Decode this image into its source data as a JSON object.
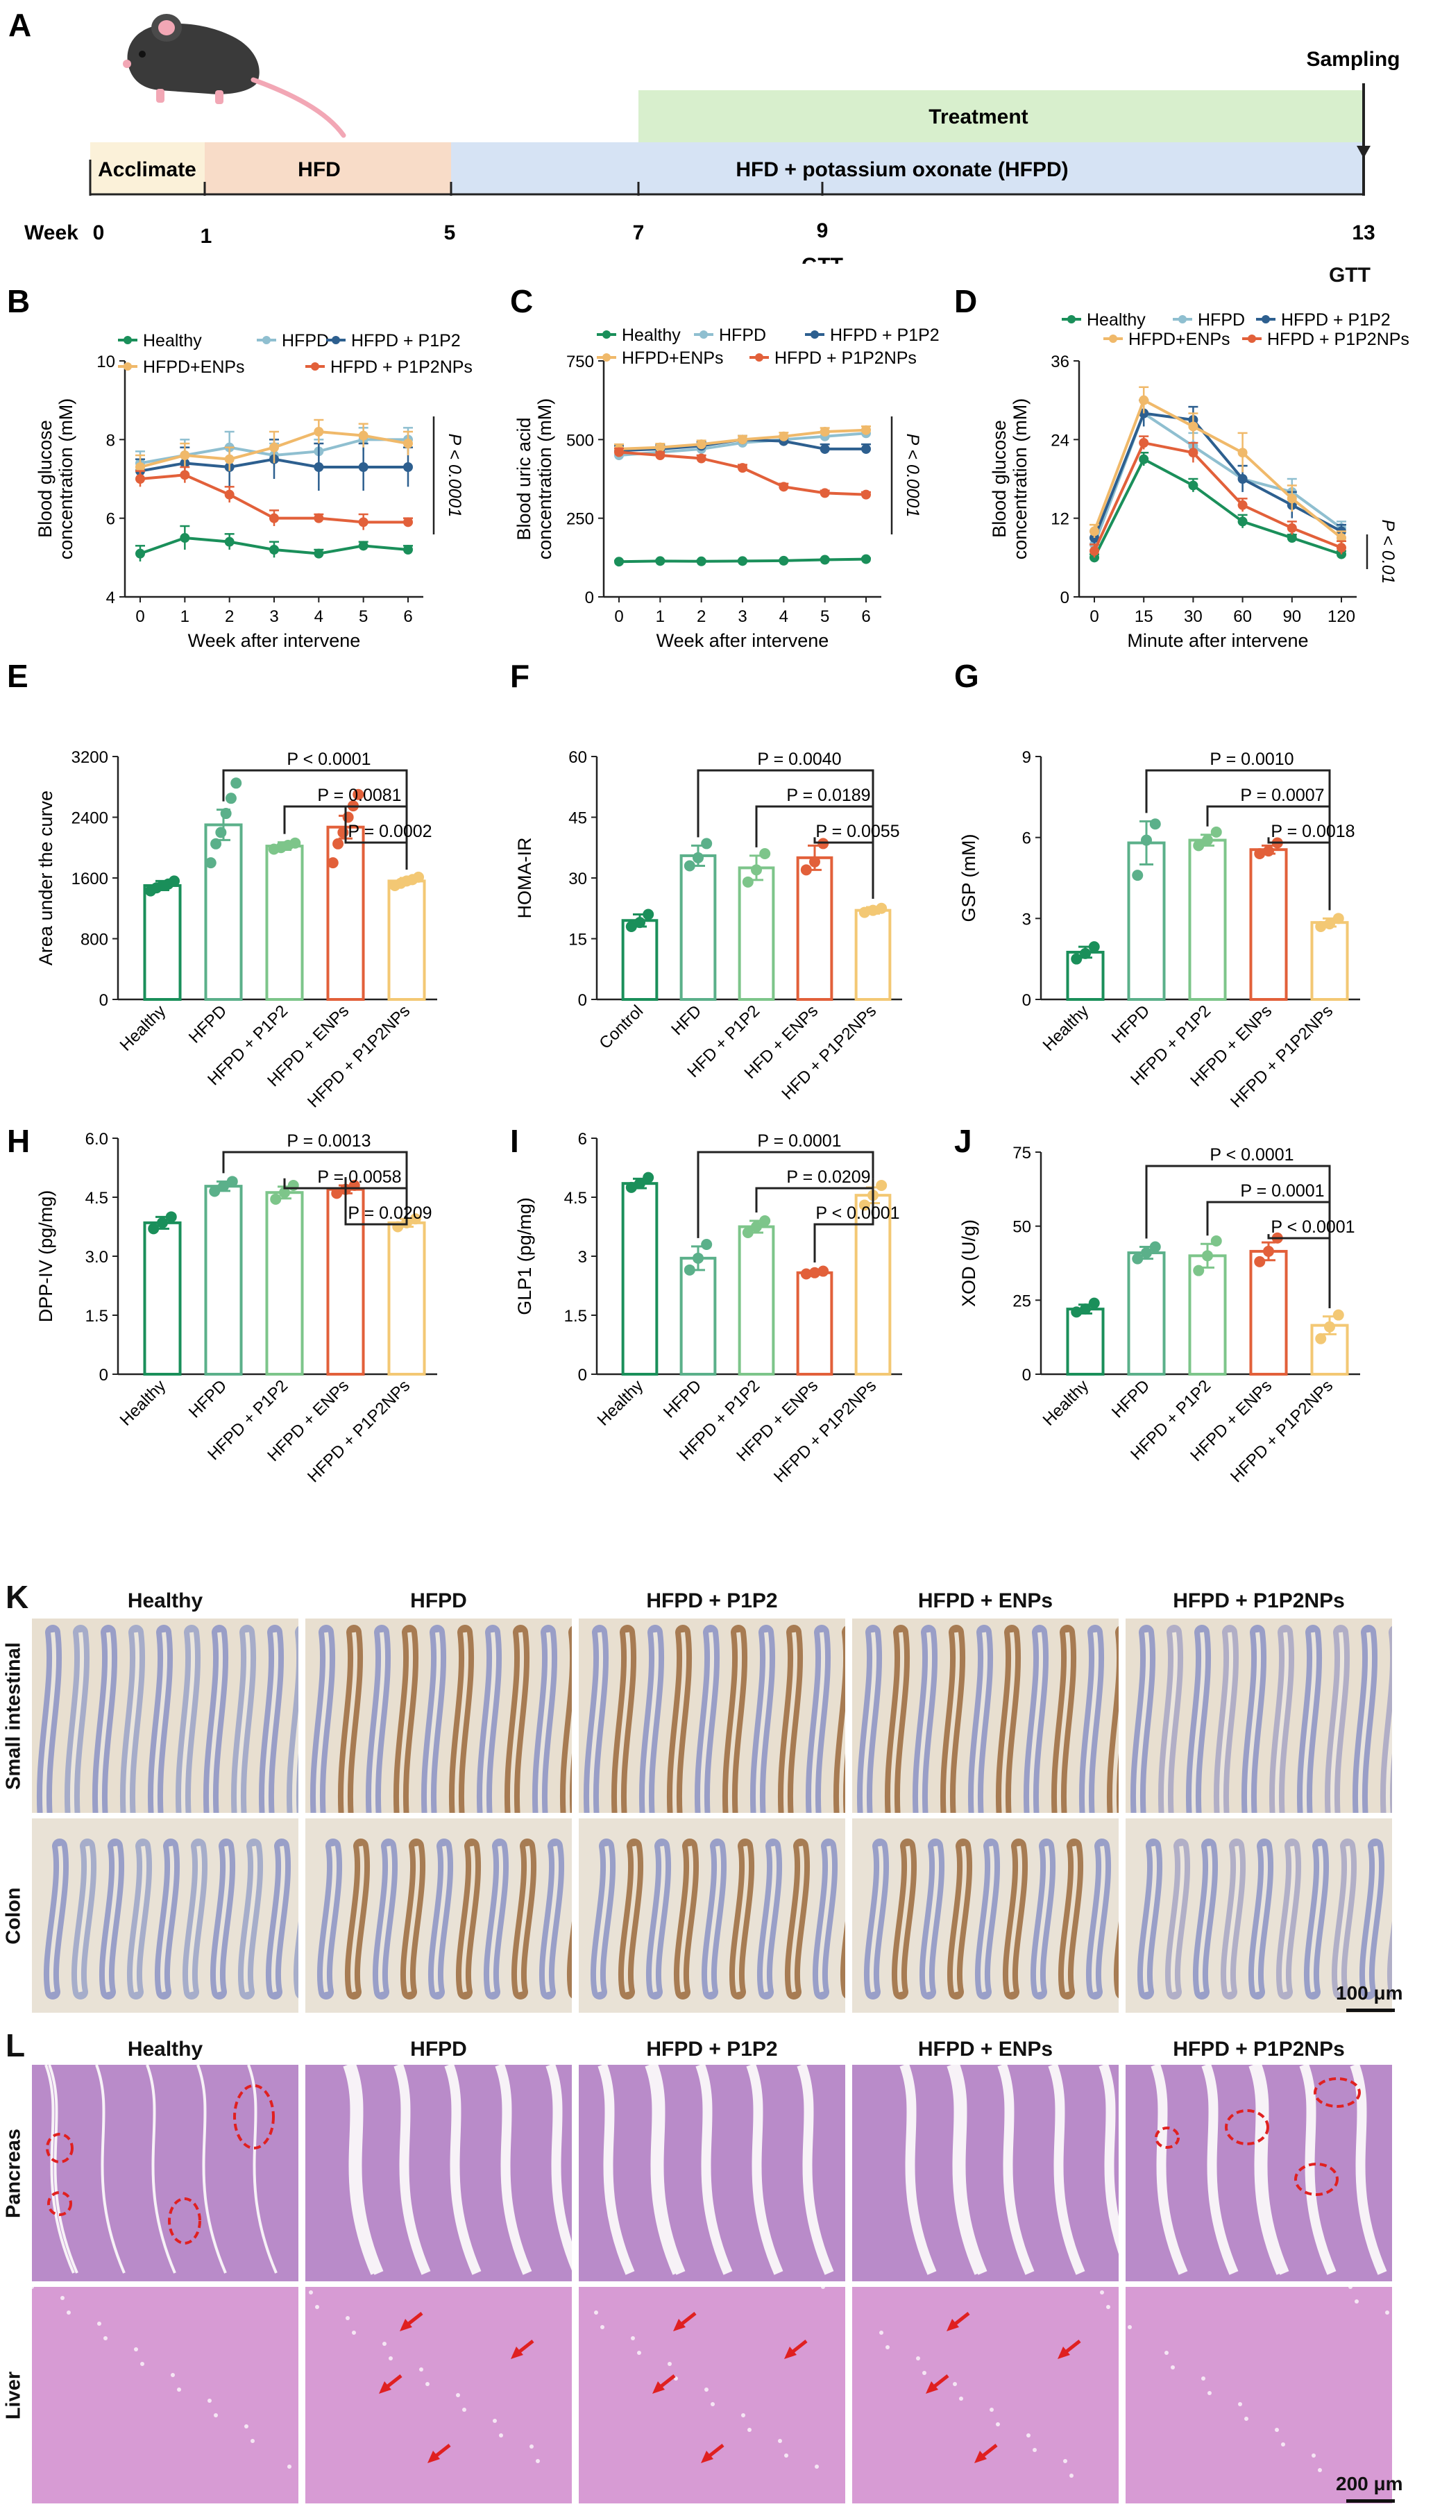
{
  "colors": {
    "healthy": "#1a8f5a",
    "hfpd": "#8fbfd0",
    "p1p2": "#2d5f8f",
    "enps": "#f0b96a",
    "p1p2nps": "#e2603a",
    "p1p2_light": "#7dc58a",
    "hfpd_bar": "#5bb08a",
    "bar_yellow": "#f3c874",
    "pink_arrow": "#e02020",
    "timeline_acclimate": "#fbf1d9",
    "timeline_hfd": "#f8dcc8",
    "timeline_hfpd": "#d6e3f4",
    "timeline_treatment": "#d8efcd"
  },
  "panelA": {
    "letter": "A",
    "acclimate": "Acclimate",
    "hfd": "HFD",
    "hfpd": "HFD + potassium oxonate (HFPD)",
    "treatment": "Treatment",
    "sampling": "Sampling",
    "week_label": "Week",
    "weeks": [
      "0",
      "1",
      "5",
      "7",
      "9",
      "13"
    ],
    "gtt": "GTT",
    "mouse_icon": "mouse-icon"
  },
  "chart_data": [
    {
      "panel": "B",
      "type": "line",
      "xlabel": "Week after intervene",
      "ylabel": "Blood glucose concentration (mM)",
      "x": [
        0,
        1,
        2,
        3,
        4,
        5,
        6
      ],
      "ylim": [
        4,
        10
      ],
      "yticks": [
        "4",
        "6",
        "8",
        "10"
      ],
      "annotation": "P < 0.0001",
      "legend": [
        "Healthy",
        "HFPD",
        "HFPD + P1P2",
        "HFPD+ENPs",
        "HFPD + P1P2NPs"
      ],
      "series": [
        {
          "name": "Healthy",
          "values": [
            5.1,
            5.5,
            5.4,
            5.2,
            5.1,
            5.3,
            5.2
          ],
          "err": [
            0.2,
            0.3,
            0.2,
            0.2,
            0.1,
            0.1,
            0.1
          ]
        },
        {
          "name": "HFPD",
          "values": [
            7.4,
            7.6,
            7.8,
            7.6,
            7.7,
            8.0,
            8.0
          ],
          "err": [
            0.3,
            0.4,
            0.4,
            0.3,
            0.3,
            0.3,
            0.3
          ]
        },
        {
          "name": "HFPD + P1P2",
          "values": [
            7.2,
            7.4,
            7.3,
            7.5,
            7.3,
            7.3,
            7.3
          ],
          "err": [
            0.3,
            0.4,
            0.5,
            0.5,
            0.6,
            0.6,
            0.5
          ]
        },
        {
          "name": "HFPD+ENPs",
          "values": [
            7.3,
            7.6,
            7.5,
            7.8,
            8.2,
            8.1,
            7.9
          ],
          "err": [
            0.3,
            0.3,
            0.3,
            0.4,
            0.3,
            0.3,
            0.3
          ]
        },
        {
          "name": "HFPD + P1P2NPs",
          "values": [
            7.0,
            7.1,
            6.6,
            6.0,
            6.0,
            5.9,
            5.9
          ],
          "err": [
            0.2,
            0.2,
            0.2,
            0.2,
            0.1,
            0.2,
            0.1
          ]
        }
      ]
    },
    {
      "panel": "C",
      "type": "line",
      "xlabel": "Week after intervene",
      "ylabel": "Blood uric acid concentration (mM)",
      "x": [
        0,
        1,
        2,
        3,
        4,
        5,
        6
      ],
      "ylim": [
        0,
        750
      ],
      "yticks": [
        "0",
        "250",
        "500",
        "750"
      ],
      "annotation": "P < 0.0001",
      "legend": [
        "Healthy",
        "HFPD",
        "HFPD + P1P2",
        "HFPD+ENPs",
        "HFPD + P1P2NPs"
      ],
      "series": [
        {
          "name": "Healthy",
          "values": [
            112,
            114,
            113,
            114,
            115,
            118,
            120
          ],
          "err": [
            3,
            3,
            3,
            3,
            3,
            3,
            3
          ]
        },
        {
          "name": "HFPD",
          "values": [
            450,
            460,
            470,
            490,
            500,
            510,
            520
          ],
          "err": [
            15,
            12,
            12,
            12,
            12,
            12,
            12
          ]
        },
        {
          "name": "HFPD + P1P2",
          "values": [
            465,
            470,
            480,
            500,
            495,
            470,
            470
          ],
          "err": [
            15,
            12,
            12,
            12,
            12,
            15,
            15
          ]
        },
        {
          "name": "HFPD+ENPs",
          "values": [
            470,
            475,
            485,
            500,
            510,
            525,
            530
          ],
          "err": [
            15,
            12,
            12,
            12,
            12,
            12,
            12
          ]
        },
        {
          "name": "HFPD + P1P2NPs",
          "values": [
            460,
            450,
            440,
            410,
            350,
            330,
            325
          ],
          "err": [
            12,
            10,
            10,
            10,
            10,
            8,
            8
          ]
        }
      ]
    },
    {
      "panel": "D",
      "type": "line",
      "xlabel": "Minute after intervene",
      "ylabel": "Blood glucose concentration (mM)",
      "x": [
        0,
        15,
        30,
        60,
        90,
        120
      ],
      "xticks": [
        "0",
        "15",
        "30",
        "60",
        "90",
        "120"
      ],
      "ylim": [
        0,
        36
      ],
      "yticks": [
        "0",
        "12",
        "24",
        "36"
      ],
      "annotation": "P < 0.01",
      "legend": [
        "Healthy",
        "HFPD",
        "HFPD + P1P2",
        "HFPD+ENPs",
        "HFPD + P1P2NPs"
      ],
      "series": [
        {
          "name": "Healthy",
          "values": [
            6,
            21,
            17,
            11.5,
            9,
            6.5
          ],
          "err": [
            0.5,
            1,
            1,
            1,
            0.5,
            0.5
          ]
        },
        {
          "name": "HFPD",
          "values": [
            8,
            28,
            23,
            18,
            16,
            10.5
          ],
          "err": [
            1,
            2,
            2,
            2,
            2,
            1
          ]
        },
        {
          "name": "HFPD + P1P2",
          "values": [
            9,
            28,
            27,
            18,
            14,
            10
          ],
          "err": [
            1,
            2,
            2,
            2,
            2,
            1
          ]
        },
        {
          "name": "HFPD+ENPs",
          "values": [
            10,
            30,
            26,
            22,
            15,
            9
          ],
          "err": [
            1,
            2,
            2,
            3,
            2,
            1
          ]
        },
        {
          "name": "HFPD + P1P2NPs",
          "values": [
            7,
            23.5,
            22,
            14,
            10.5,
            7.5
          ],
          "err": [
            1,
            1,
            1.5,
            1,
            1,
            1
          ]
        }
      ]
    },
    {
      "panel": "E",
      "type": "bar",
      "ylabel": "Area under the curve",
      "categories": [
        "Healthy",
        "HFPD",
        "HFPD + P1P2",
        "HFPD + ENPs",
        "HFPD + P1P2NPs"
      ],
      "values": [
        1500,
        2300,
        2020,
        2270,
        1560
      ],
      "err": [
        60,
        200,
        50,
        150,
        40
      ],
      "ylim": [
        0,
        3200
      ],
      "yticks": [
        "0",
        "800",
        "1600",
        "2400",
        "3200"
      ],
      "points": [
        [
          1430,
          1470,
          1500,
          1520,
          1560
        ],
        [
          1800,
          2050,
          2200,
          2450,
          2650,
          2850
        ],
        [
          1980,
          2000,
          2030,
          2060
        ],
        [
          1800,
          2050,
          2200,
          2400,
          2550,
          2700
        ],
        [
          1500,
          1530,
          1560,
          1580,
          1610
        ]
      ],
      "comparisons": [
        {
          "from": 1,
          "to": 4,
          "label": "P < 0.0001"
        },
        {
          "from": 2,
          "to": 4,
          "label": "P = 0.0081"
        },
        {
          "from": 3,
          "to": 4,
          "label": "P = 0.0002"
        }
      ]
    },
    {
      "panel": "F",
      "type": "bar",
      "ylabel": "HOMA-IR",
      "categories": [
        "Control",
        "HFD",
        "HFD + P1P2",
        "HFD + ENPs",
        "HFD + P1P2NPs"
      ],
      "values": [
        19.5,
        35.5,
        32.5,
        35,
        22
      ],
      "err": [
        1.5,
        2.5,
        3,
        3,
        0.8
      ],
      "ylim": [
        0,
        60
      ],
      "yticks": [
        "0",
        "15",
        "30",
        "45",
        "60"
      ],
      "points": [
        [
          18,
          19,
          21
        ],
        [
          33,
          35,
          38.5
        ],
        [
          29,
          32,
          36
        ],
        [
          32,
          34,
          38.5
        ],
        [
          21.5,
          22,
          22.5
        ]
      ],
      "comparisons": [
        {
          "from": 1,
          "to": 4,
          "label": "P = 0.0040"
        },
        {
          "from": 2,
          "to": 4,
          "label": "P = 0.0189"
        },
        {
          "from": 3,
          "to": 4,
          "label": "P = 0.0055"
        }
      ]
    },
    {
      "panel": "G",
      "type": "bar",
      "ylabel": "GSP (mM)",
      "categories": [
        "Healthy",
        "HFPD",
        "HFPD + P1P2",
        "HFPD + ENPs",
        "HFPD + P1P2NPs"
      ],
      "values": [
        1.75,
        5.8,
        5.9,
        5.55,
        2.85
      ],
      "err": [
        0.2,
        0.8,
        0.2,
        0.15,
        0.15
      ],
      "ylim": [
        0,
        9
      ],
      "yticks": [
        "0",
        "3",
        "6",
        "9"
      ],
      "points": [
        [
          1.5,
          1.7,
          1.95
        ],
        [
          4.6,
          5.9,
          6.5
        ],
        [
          5.7,
          5.9,
          6.2
        ],
        [
          5.4,
          5.5,
          5.8
        ],
        [
          2.7,
          2.8,
          3.0
        ]
      ],
      "comparisons": [
        {
          "from": 1,
          "to": 4,
          "label": "P = 0.0010"
        },
        {
          "from": 2,
          "to": 4,
          "label": "P = 0.0007"
        },
        {
          "from": 3,
          "to": 4,
          "label": "P = 0.0018"
        }
      ]
    },
    {
      "panel": "H",
      "type": "bar",
      "ylabel": "DPP-IV (pg/mg)",
      "categories": [
        "Healthy",
        "HFPD",
        "HFPD + P1P2",
        "HFPD + ENPs",
        "HFPD + P1P2NPs"
      ],
      "values": [
        3.85,
        4.78,
        4.62,
        4.7,
        3.85
      ],
      "err": [
        0.15,
        0.12,
        0.15,
        0.1,
        0.1
      ],
      "ylim": [
        0,
        6
      ],
      "yticks": [
        "0",
        "1.5",
        "3.0",
        "4.5",
        "6.0"
      ],
      "points": [
        [
          3.7,
          3.85,
          4.0
        ],
        [
          4.65,
          4.78,
          4.9
        ],
        [
          4.45,
          4.62,
          4.8
        ],
        [
          4.6,
          4.7,
          4.8
        ],
        [
          3.75,
          3.85,
          3.95
        ]
      ],
      "comparisons": [
        {
          "from": 1,
          "to": 4,
          "label": "P = 0.0013"
        },
        {
          "from": 2,
          "to": 4,
          "label": "P = 0.0058"
        },
        {
          "from": 3,
          "to": 4,
          "label": "P = 0.0209"
        }
      ]
    },
    {
      "panel": "I",
      "type": "bar",
      "ylabel": "GLP1 (pg/mg)",
      "categories": [
        "Healthy",
        "HFPD",
        "HFPD + P1P2",
        "HFPD + ENPs",
        "HFPD + P1P2NPs"
      ],
      "values": [
        4.85,
        2.95,
        3.75,
        2.58,
        4.55
      ],
      "err": [
        0.12,
        0.3,
        0.15,
        0.05,
        0.2
      ],
      "ylim": [
        0,
        6
      ],
      "yticks": [
        "0",
        "1.5",
        "3",
        "4.5",
        "6"
      ],
      "points": [
        [
          4.75,
          4.85,
          5.0
        ],
        [
          2.65,
          2.95,
          3.3
        ],
        [
          3.6,
          3.75,
          3.9
        ],
        [
          2.55,
          2.58,
          2.62
        ],
        [
          4.3,
          4.55,
          4.8
        ]
      ],
      "comparisons": [
        {
          "from": 1,
          "to": 4,
          "label": "P = 0.0001"
        },
        {
          "from": 2,
          "to": 4,
          "label": "P = 0.0209"
        },
        {
          "from": 3,
          "to": 4,
          "label": "P < 0.0001"
        }
      ]
    },
    {
      "panel": "J",
      "type": "bar",
      "ylabel": "XOD (U/g)",
      "categories": [
        "Healthy",
        "HFPD",
        "HFPD + P1P2",
        "HFPD + ENPs",
        "HFPD + P1P2NPs"
      ],
      "values": [
        22,
        41,
        40,
        41.5,
        16.5
      ],
      "err": [
        1.5,
        2,
        4,
        3,
        3
      ],
      "ylim": [
        0,
        75
      ],
      "yticks": [
        "0",
        "25",
        "50",
        "75"
      ],
      "points": [
        [
          21,
          22,
          24
        ],
        [
          39,
          41,
          43
        ],
        [
          35,
          40,
          45
        ],
        [
          38,
          41.5,
          46
        ],
        [
          12,
          16,
          20
        ]
      ],
      "comparisons": [
        {
          "from": 1,
          "to": 4,
          "label": "P < 0.0001"
        },
        {
          "from": 2,
          "to": 4,
          "label": "P = 0.0001"
        },
        {
          "from": 3,
          "to": 4,
          "label": "P < 0.0001"
        }
      ]
    }
  ],
  "panelK": {
    "letter": "K",
    "columns": [
      "Healthy",
      "HFPD",
      "HFPD + P1P2",
      "HFPD + ENPs",
      "HFPD + P1P2NPs"
    ],
    "rows": [
      "Small intestinal",
      "Colon"
    ],
    "scale": "100 μm"
  },
  "panelL": {
    "letter": "L",
    "columns": [
      "Healthy",
      "HFPD",
      "HFPD + P1P2",
      "HFPD + ENPs",
      "HFPD + P1P2NPs"
    ],
    "rows": [
      "Pancreas",
      "Liver"
    ],
    "scale": "200 μm"
  }
}
